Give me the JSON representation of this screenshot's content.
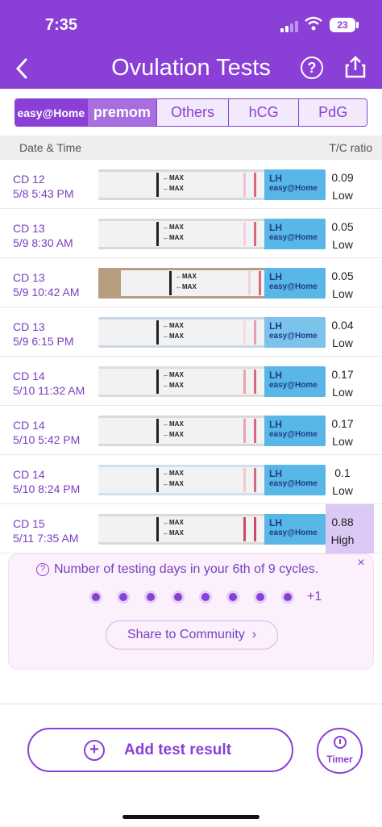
{
  "status_bar": {
    "time": "7:35",
    "battery": "23"
  },
  "header": {
    "title": "Ovulation Tests",
    "help_label": "?"
  },
  "tabs": [
    {
      "label": "easy@Home"
    },
    {
      "label": "premom"
    },
    {
      "label": "Others"
    },
    {
      "label": "hCG"
    },
    {
      "label": "PdG"
    }
  ],
  "table": {
    "col_date": "Date & Time",
    "col_ratio": "T/C ratio",
    "rows": [
      {
        "cd": "CD 12",
        "datetime": "5/8 5:43 PM",
        "ratio": "0.09",
        "level": "Low"
      },
      {
        "cd": "CD 13",
        "datetime": "5/9 8:30 AM",
        "ratio": "0.05",
        "level": "Low"
      },
      {
        "cd": "CD 13",
        "datetime": "5/9 10:42 AM",
        "ratio": "0.05",
        "level": "Low"
      },
      {
        "cd": "CD 13",
        "datetime": "5/9 6:15 PM",
        "ratio": "0.04",
        "level": "Low"
      },
      {
        "cd": "CD 14",
        "datetime": "5/10 11:32 AM",
        "ratio": "0.17",
        "level": "Low"
      },
      {
        "cd": "CD 14",
        "datetime": "5/10 5:42 PM",
        "ratio": "0.17",
        "level": "Low"
      },
      {
        "cd": "CD 14",
        "datetime": "5/10 8:24 PM",
        "ratio": "0.1",
        "level": "Low"
      },
      {
        "cd": "CD 15",
        "datetime": "5/11 7:35 AM",
        "ratio": "0.88",
        "level": "High"
      }
    ],
    "strip_labels": {
      "max": "MAX",
      "lh": "LH",
      "brand": "easy@Home"
    }
  },
  "card": {
    "message": "Number of testing days in your 6th of 9 cycles.",
    "extra_count": "+1",
    "share_label": "Share to Community",
    "close": "×"
  },
  "bottom": {
    "add_label": "Add test result",
    "timer_label": "Timer"
  },
  "colors": {
    "accent": "#8a3fd6",
    "high_bg": "#dcc8f4"
  }
}
